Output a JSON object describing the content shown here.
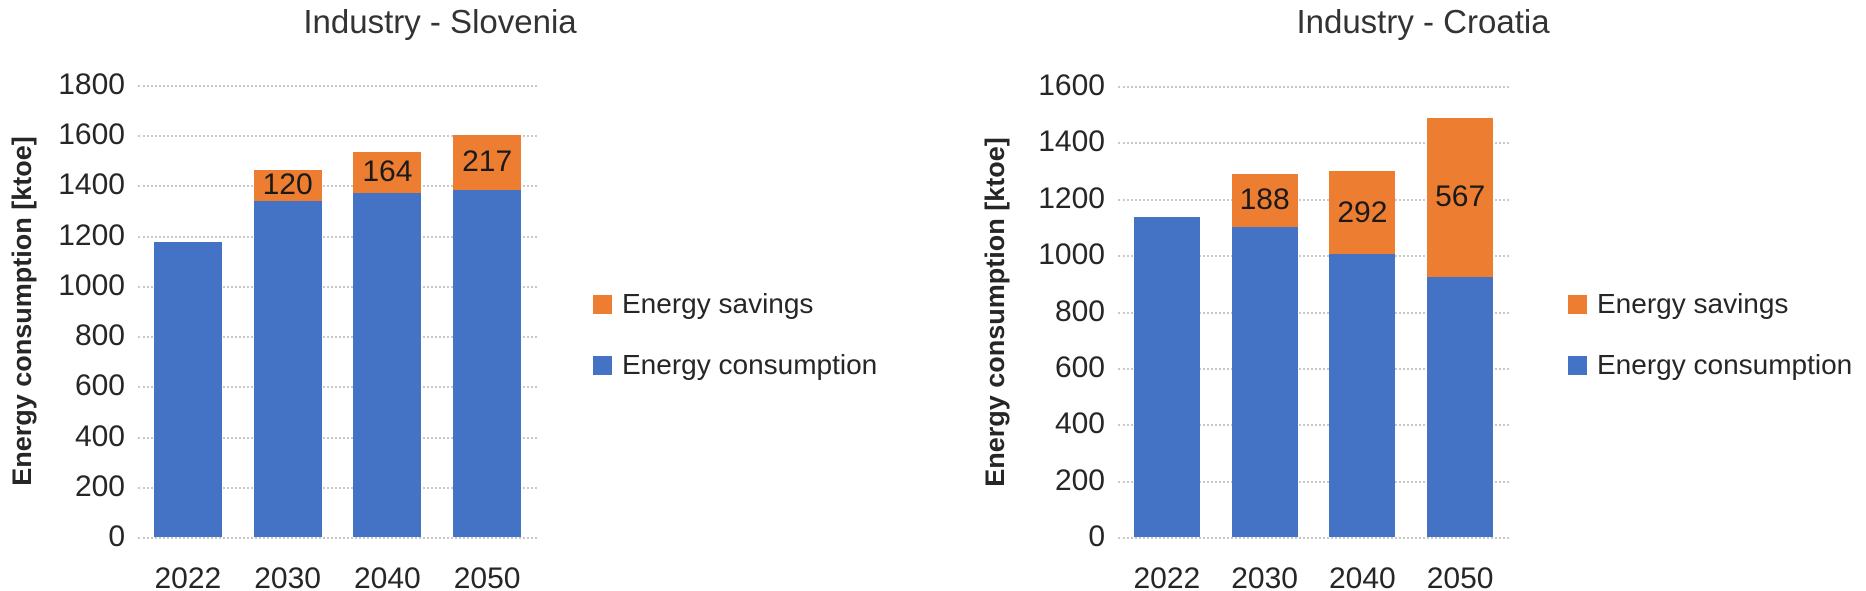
{
  "page": {
    "background": "#ffffff"
  },
  "chart_data": [
    {
      "type": "bar",
      "stacked": true,
      "title": "Industry - Slovenia",
      "ylabel": "Energy consumption [ktoe]",
      "xlabel": "",
      "categories": [
        "2022",
        "2030",
        "2040",
        "2050"
      ],
      "series": [
        {
          "name": "Energy consumption",
          "color": "#4472C4",
          "values": [
            1175,
            1340,
            1370,
            1383
          ]
        },
        {
          "name": "Energy savings",
          "color": "#ED7D31",
          "values": [
            0,
            120,
            164,
            217
          ]
        }
      ],
      "data_labels": {
        "series": "Energy savings",
        "values": [
          null,
          "120",
          "164",
          "217"
        ]
      },
      "ylim": [
        0,
        1800
      ],
      "ytick_step": 200,
      "grid": "dotted-horizontal",
      "legend_position": "right",
      "legend": [
        {
          "label": "Energy savings",
          "color": "#ED7D31"
        },
        {
          "label": "Energy consumption",
          "color": "#4472C4"
        }
      ]
    },
    {
      "type": "bar",
      "stacked": true,
      "title": "Industry - Croatia",
      "ylabel": "Energy consumption [ktoe]",
      "xlabel": "",
      "categories": [
        "2022",
        "2030",
        "2040",
        "2050"
      ],
      "series": [
        {
          "name": "Energy consumption",
          "color": "#4472C4",
          "values": [
            1135,
            1100,
            1005,
            921
          ]
        },
        {
          "name": "Energy savings",
          "color": "#ED7D31",
          "values": [
            0,
            188,
            292,
            567
          ]
        }
      ],
      "data_labels": {
        "series": "Energy savings",
        "values": [
          null,
          "188",
          "292",
          "567"
        ]
      },
      "ylim": [
        0,
        1600
      ],
      "ytick_step": 200,
      "grid": "dotted-horizontal",
      "legend_position": "right",
      "legend": [
        {
          "label": "Energy savings",
          "color": "#ED7D31"
        },
        {
          "label": "Energy consumption",
          "color": "#4472C4"
        }
      ]
    }
  ]
}
